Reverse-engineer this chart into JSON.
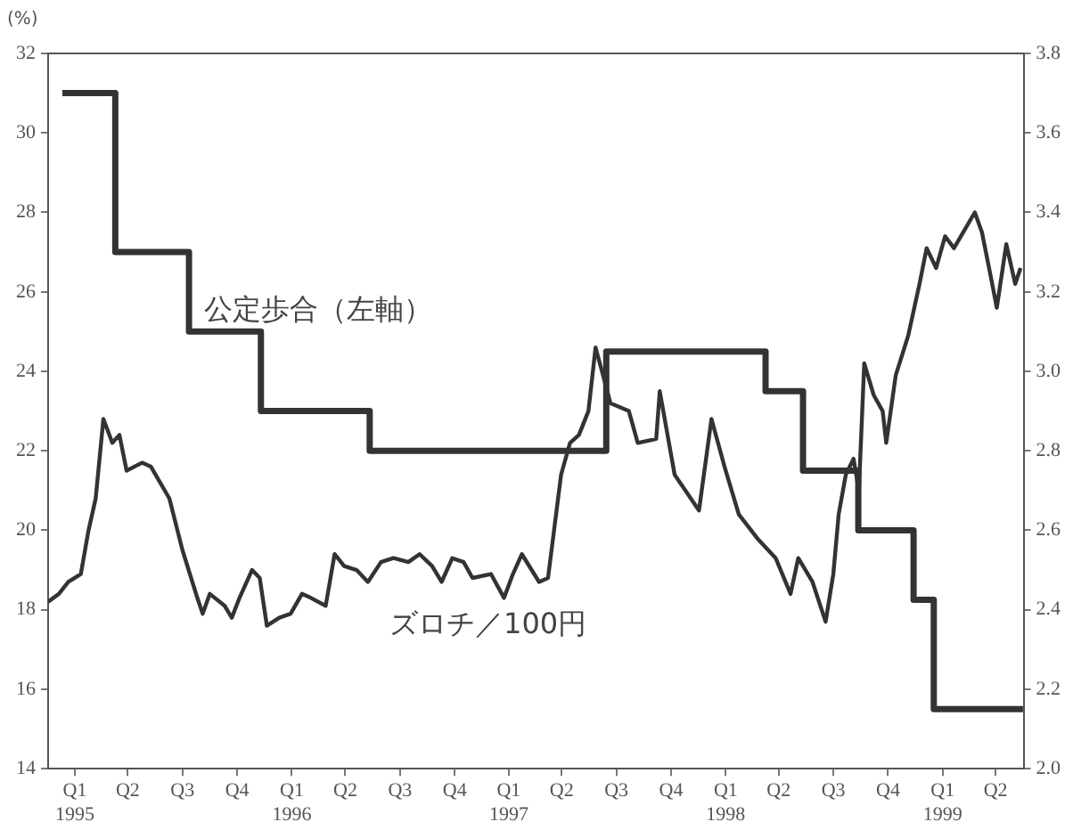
{
  "chart_data": {
    "type": "line",
    "ylabel": "(%)",
    "legend": false,
    "grid": false,
    "marker": "none",
    "xlim": [
      "1995-01-01",
      "1999-07-01"
    ],
    "xticks": [
      {
        "value": "1995-02-15",
        "label": "Q1\n1995"
      },
      {
        "value": "1995-05-15",
        "label": "Q2"
      },
      {
        "value": "1995-08-15",
        "label": "Q3"
      },
      {
        "value": "1995-11-15",
        "label": "Q4"
      },
      {
        "value": "1996-02-15",
        "label": "Q1\n1996"
      },
      {
        "value": "1996-05-15",
        "label": "Q2"
      },
      {
        "value": "1996-08-15",
        "label": "Q3"
      },
      {
        "value": "1996-11-15",
        "label": "Q4"
      },
      {
        "value": "1997-02-15",
        "label": "Q1\n1997"
      },
      {
        "value": "1997-05-15",
        "label": "Q2"
      },
      {
        "value": "1997-08-15",
        "label": "Q3"
      },
      {
        "value": "1997-11-15",
        "label": "Q4"
      },
      {
        "value": "1998-02-15",
        "label": "Q1\n1998"
      },
      {
        "value": "1998-05-15",
        "label": "Q2"
      },
      {
        "value": "1998-08-15",
        "label": "Q3"
      },
      {
        "value": "1998-11-15",
        "label": "Q4"
      },
      {
        "value": "1999-02-15",
        "label": "Q1\n1999"
      },
      {
        "value": "1999-05-15",
        "label": "Q2"
      }
    ],
    "ylim": [
      14,
      32
    ],
    "yticks": [
      14,
      16,
      18,
      20,
      22,
      24,
      26,
      28,
      30,
      32
    ],
    "y2lim": [
      2.0,
      3.8
    ],
    "y2ticks": [
      {
        "value": 2.0,
        "label": "2.0"
      },
      2.2,
      2.4,
      2.6,
      2.8,
      {
        "value": 3.0,
        "label": "3.0"
      },
      3.2,
      3.4,
      3.6,
      3.8
    ],
    "series": [
      {
        "name": "公定歩合（左軸）",
        "type": "step",
        "color": "#333333",
        "x": [
          "1995-01-25",
          "1995-04-24",
          "1995-08-26",
          "1995-12-25",
          "1996-06-25",
          "1997-07-29",
          "1998-04-23",
          "1998-06-25",
          "1998-09-26",
          "1998-12-28",
          "1999-01-31",
          "1999-06-30"
        ],
        "values": [
          31,
          27,
          25,
          23,
          22,
          24.5,
          23.5,
          21.5,
          20,
          18.25,
          15.5,
          15.5
        ]
      },
      {
        "name": "ズロチ／100円",
        "type": "line",
        "axis": "y2",
        "color": "#333333",
        "x": [
          "1995-01-01",
          "1995-01-19",
          "1995-02-04",
          "1995-02-25",
          "1995-03-10",
          "1995-03-22",
          "1995-04-04",
          "1995-04-19",
          "1995-05-01",
          "1995-05-13",
          "1995-06-08",
          "1995-06-23",
          "1995-07-24",
          "1995-08-15",
          "1995-09-09",
          "1995-09-18",
          "1995-09-30",
          "1995-10-25",
          "1995-11-06",
          "1995-11-19",
          "1995-12-10",
          "1995-12-23",
          "1996-01-04",
          "1996-01-25",
          "1996-02-13",
          "1996-03-03",
          "1996-03-18",
          "1996-04-12",
          "1996-04-27",
          "1996-05-13",
          "1996-06-03",
          "1996-06-22",
          "1996-07-14",
          "1996-08-04",
          "1996-08-29",
          "1996-09-17",
          "1996-10-08",
          "1996-10-24",
          "1996-11-11",
          "1996-11-30",
          "1996-12-15",
          "1997-01-16",
          "1997-02-07",
          "1997-02-22",
          "1997-03-09",
          "1997-04-07",
          "1997-04-22",
          "1997-05-14",
          "1997-05-29",
          "1997-06-13",
          "1997-06-29",
          "1997-07-11",
          "1997-07-20",
          "1997-08-05",
          "1997-09-05",
          "1997-09-20",
          "1997-10-21",
          "1997-10-27",
          "1997-11-21",
          "1998-01-01",
          "1998-01-22",
          "1998-02-13",
          "1998-03-09",
          "1998-04-09",
          "1998-05-10",
          "1998-06-04",
          "1998-06-17",
          "1998-07-11",
          "1998-08-02",
          "1998-08-15",
          "1998-08-24",
          "1998-09-05",
          "1998-09-18",
          "1998-09-27",
          "1998-10-06",
          "1998-10-22",
          "1998-11-06",
          "1998-11-12",
          "1998-11-28",
          "1998-12-19",
          "1999-01-07",
          "1999-01-19",
          "1999-02-04",
          "1999-02-19",
          "1999-03-06",
          "1999-04-10",
          "1999-04-22",
          "1999-05-08",
          "1999-05-17",
          "1999-06-02",
          "1999-06-17",
          "1999-06-26"
        ],
        "values": [
          2.42,
          2.44,
          2.47,
          2.49,
          2.6,
          2.68,
          2.88,
          2.82,
          2.84,
          2.75,
          2.77,
          2.76,
          2.68,
          2.55,
          2.43,
          2.39,
          2.44,
          2.41,
          2.38,
          2.43,
          2.5,
          2.48,
          2.36,
          2.38,
          2.39,
          2.44,
          2.43,
          2.41,
          2.54,
          2.51,
          2.5,
          2.47,
          2.52,
          2.53,
          2.52,
          2.54,
          2.51,
          2.47,
          2.53,
          2.52,
          2.48,
          2.49,
          2.43,
          2.49,
          2.54,
          2.47,
          2.48,
          2.74,
          2.82,
          2.84,
          2.9,
          3.06,
          3.01,
          2.92,
          2.9,
          2.82,
          2.83,
          2.95,
          2.74,
          2.65,
          2.88,
          2.76,
          2.64,
          2.58,
          2.53,
          2.44,
          2.53,
          2.47,
          2.37,
          2.49,
          2.64,
          2.74,
          2.78,
          2.7,
          3.02,
          2.94,
          2.9,
          2.82,
          2.99,
          3.09,
          3.22,
          3.31,
          3.26,
          3.34,
          3.31,
          3.4,
          3.35,
          3.23,
          3.16,
          3.32,
          3.22,
          3.26
        ]
      }
    ]
  }
}
